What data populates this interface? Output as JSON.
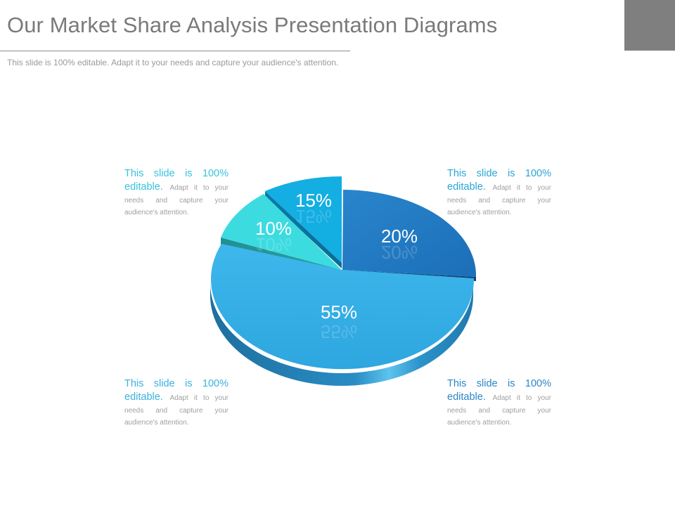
{
  "header": {
    "title": "Our Market Share Analysis Presentation Diagrams",
    "subtitle": "This slide is 100% editable. Adapt it to your needs and capture your audience's attention."
  },
  "callouts": [
    {
      "lead": "This slide is 100% editable.",
      "body": "Adapt it to your needs and capture your audience's attention."
    },
    {
      "lead": "This slide is 100% editable.",
      "body": "Adapt it to your needs and capture your audience's attention."
    },
    {
      "lead": "This slide is 100% editable.",
      "body": "Adapt it to your needs and capture your audience's attention."
    },
    {
      "lead": "This slide is 100% editable.",
      "body": "Adapt it to your needs and capture your audience's attention."
    }
  ],
  "chart_data": {
    "type": "pie",
    "style": "3d-exploded",
    "slices": [
      {
        "label": "20%",
        "value": 20,
        "color": "#2079c4"
      },
      {
        "label": "55%",
        "value": 55,
        "color": "#34aee6"
      },
      {
        "label": "10%",
        "value": 10,
        "color": "#3ad8e0"
      },
      {
        "label": "15%",
        "value": 15,
        "color": "#12ace0"
      }
    ]
  },
  "colors": {
    "title": "#7a7a7a",
    "corner_block": "#7f7f7f"
  }
}
